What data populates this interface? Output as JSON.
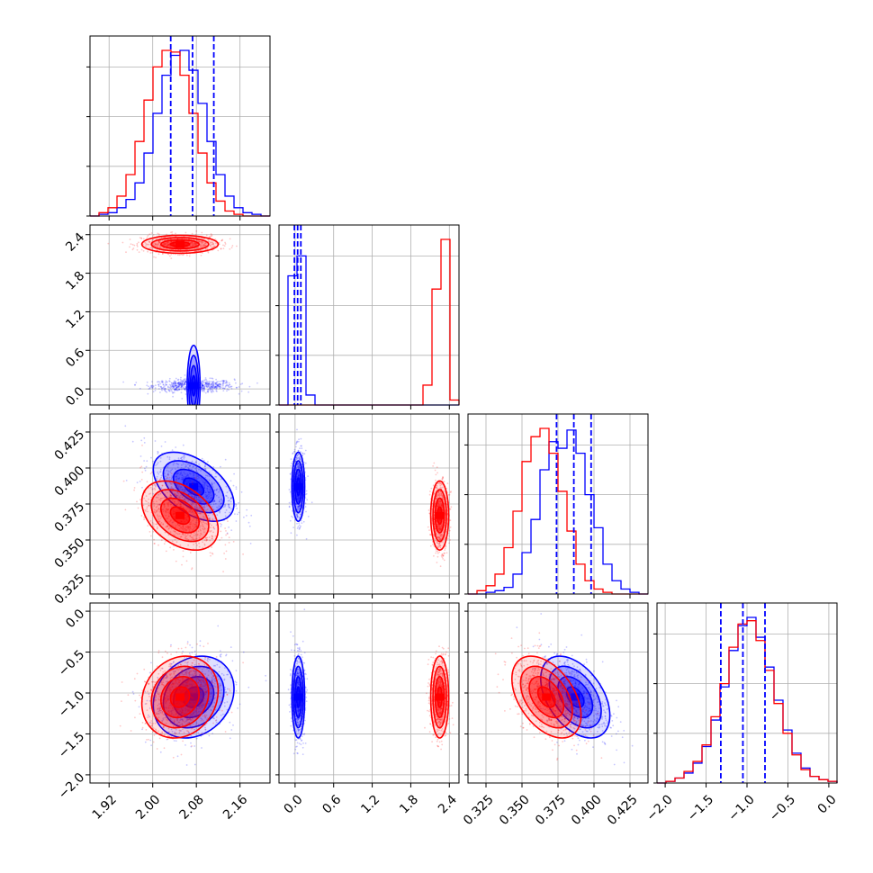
{
  "title": "",
  "colors": {
    "series_a": "#0000ff",
    "series_b": "#ff0000",
    "grid": "#b0b0b0",
    "frame": "#000000"
  },
  "chart_data": {
    "type": "corner",
    "parameters": [
      "p1",
      "p2",
      "p3",
      "p4"
    ],
    "parameter_labels": [
      "",
      "",
      "",
      ""
    ],
    "series": [
      {
        "color": "#0000ff",
        "means": [
          2.075,
          0.05,
          0.387,
          -1.05
        ],
        "sigmas": [
          0.037,
          0.05,
          0.012,
          0.25
        ]
      },
      {
        "color": "#ff0000",
        "means": [
          2.05,
          2.25,
          0.367,
          -1.05
        ],
        "sigmas": [
          0.035,
          0.07,
          0.012,
          0.25
        ]
      }
    ],
    "axis_ranges": [
      [
        1.885,
        2.215
      ],
      [
        -0.25,
        2.55
      ],
      [
        0.3125,
        0.4375
      ],
      [
        -2.1,
        0.1
      ]
    ],
    "tick_labels": [
      [
        "1.92",
        "2.00",
        "2.08",
        "2.16"
      ],
      [
        "0.0",
        "0.6",
        "1.2",
        "1.8",
        "2.4"
      ],
      [
        "0.325",
        "0.350",
        "0.375",
        "0.400",
        "0.425"
      ],
      [
        "−2.0",
        "−1.5",
        "−1.0",
        "−0.5",
        "0.0"
      ]
    ],
    "tick_values": [
      [
        1.92,
        2.0,
        2.08,
        2.16
      ],
      [
        0.0,
        0.6,
        1.2,
        1.8,
        2.4
      ],
      [
        0.325,
        0.35,
        0.375,
        0.4,
        0.425
      ],
      [
        -2.0,
        -1.5,
        -1.0,
        -0.5,
        0.0
      ]
    ],
    "quantile_lines": [
      [
        2.033,
        2.073,
        2.112
      ],
      [
        -0.01,
        0.04,
        0.09
      ],
      [
        0.374,
        0.386,
        0.398
      ],
      [
        -1.32,
        -1.05,
        -0.78
      ]
    ],
    "quantile_color": "#0000ff",
    "histograms": [
      {
        "edges": [
          1.885,
          1.9015,
          1.918,
          1.9345,
          1.951,
          1.9675,
          1.984,
          2.0005,
          2.017,
          2.0335,
          2.05,
          2.0665,
          2.083,
          2.0995,
          2.116,
          2.1325,
          2.149,
          2.1655,
          2.182,
          2.1985,
          2.215
        ],
        "series_counts": [
          [
            0,
            1,
            2,
            5,
            10,
            20,
            38,
            62,
            85,
            97,
            100,
            88,
            68,
            45,
            25,
            12,
            5,
            2,
            1,
            0
          ],
          [
            0,
            2,
            5,
            12,
            25,
            45,
            70,
            90,
            100,
            99,
            85,
            62,
            38,
            20,
            9,
            3,
            1,
            0,
            0,
            0
          ]
        ]
      },
      {
        "edges": [
          -0.25,
          -0.11,
          0.03,
          0.17,
          0.31,
          0.45,
          0.59,
          0.73,
          0.87,
          1.01,
          1.15,
          1.29,
          1.43,
          1.57,
          1.71,
          1.85,
          1.99,
          2.13,
          2.27,
          2.41,
          2.55
        ],
        "series_counts": [
          [
            0,
            78,
            90,
            6,
            0,
            0,
            0,
            0,
            0,
            0,
            0,
            0,
            0,
            0,
            0,
            0,
            0,
            0,
            0,
            0
          ],
          [
            0,
            0,
            0,
            0,
            0,
            0,
            0,
            0,
            0,
            0,
            0,
            0,
            0,
            0,
            0,
            0,
            12,
            70,
            100,
            3
          ]
        ]
      },
      {
        "edges": [
          0.3125,
          0.31875,
          0.325,
          0.33125,
          0.3375,
          0.34375,
          0.35,
          0.35625,
          0.3625,
          0.36875,
          0.375,
          0.38125,
          0.3875,
          0.39375,
          0.4,
          0.40625,
          0.4125,
          0.41875,
          0.425,
          0.43125,
          0.4375
        ],
        "series_counts": [
          [
            0,
            0,
            1,
            2,
            4,
            12,
            25,
            45,
            75,
            92,
            88,
            99,
            85,
            60,
            40,
            18,
            8,
            3,
            1,
            0
          ],
          [
            0,
            2,
            5,
            12,
            28,
            50,
            80,
            95,
            100,
            85,
            62,
            38,
            18,
            8,
            3,
            1,
            0,
            0,
            0,
            0
          ]
        ]
      },
      {
        "edges": [
          -2.1,
          -1.99,
          -1.88,
          -1.77,
          -1.66,
          -1.55,
          -1.44,
          -1.33,
          -1.22,
          -1.11,
          -1.0,
          -0.89,
          -0.78,
          -0.67,
          -0.56,
          -0.45,
          -0.34,
          -0.23,
          -0.12,
          -0.01,
          0.1
        ],
        "series_counts": [
          [
            0,
            1,
            3,
            6,
            12,
            22,
            38,
            58,
            80,
            95,
            100,
            88,
            70,
            50,
            32,
            18,
            9,
            4,
            2,
            1
          ],
          [
            0,
            1,
            3,
            7,
            13,
            23,
            40,
            60,
            82,
            96,
            98,
            86,
            68,
            48,
            30,
            17,
            8,
            4,
            2,
            1
          ]
        ]
      }
    ],
    "joint": [
      {
        "row": 1,
        "col": 0,
        "series_rho": [
          0.0,
          0.0
        ]
      },
      {
        "row": 2,
        "col": 0,
        "series_rho": [
          -0.5,
          -0.4
        ]
      },
      {
        "row": 2,
        "col": 1,
        "series_rho": [
          0.0,
          0.0
        ]
      },
      {
        "row": 3,
        "col": 0,
        "series_rho": [
          0.2,
          0.15
        ]
      },
      {
        "row": 3,
        "col": 1,
        "series_rho": [
          0.0,
          0.0
        ]
      },
      {
        "row": 3,
        "col": 2,
        "series_rho": [
          -0.45,
          -0.45
        ]
      }
    ],
    "contour_levels_sigma": [
      0.5,
      1.0,
      1.5,
      2.0
    ],
    "grid": true,
    "legend": "none"
  }
}
